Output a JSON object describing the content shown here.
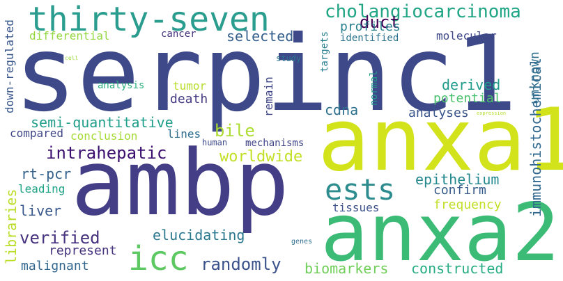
{
  "words": [
    {
      "id": "serpinc1",
      "text": "serpinc1",
      "color": "#3e4989"
    },
    {
      "id": "anxa1",
      "text": "anxa1",
      "color": "#d2e21b"
    },
    {
      "id": "ambp",
      "text": "ambp",
      "color": "#433e85"
    },
    {
      "id": "anxa2",
      "text": "anxa2",
      "color": "#3bbb75"
    },
    {
      "id": "thirty-seven",
      "text": "thirty-seven",
      "color": "#2a9d8f"
    },
    {
      "id": "ests",
      "text": "ests",
      "color": "#2c8c8e"
    },
    {
      "id": "icc",
      "text": "icc",
      "color": "#5ec962"
    },
    {
      "id": "cholangiocarcinoma",
      "text": "cholangiocarcinoma",
      "color": "#21a685"
    },
    {
      "id": "immunohistochemical",
      "text": "immunohistochemical",
      "color": "#31688e"
    },
    {
      "id": "intrahepatic",
      "text": "intrahepatic",
      "color": "#3b0f70"
    },
    {
      "id": "semi-quantitative",
      "text": "semi-quantitative",
      "color": "#1f9e89"
    },
    {
      "id": "worldwide",
      "text": "worldwide",
      "color": "#c2df23"
    },
    {
      "id": "elucidating",
      "text": "elucidating",
      "color": "#2a788e"
    },
    {
      "id": "verified",
      "text": "verified",
      "color": "#46327e"
    },
    {
      "id": "randomly",
      "text": "randomly",
      "color": "#3b528b"
    },
    {
      "id": "biomarkers",
      "text": "biomarkers",
      "color": "#6ece58"
    },
    {
      "id": "constructed",
      "text": "constructed",
      "color": "#25ac82"
    },
    {
      "id": "selected",
      "text": "selected",
      "color": "#355f8d"
    },
    {
      "id": "duct",
      "text": "duct",
      "color": "#440154"
    },
    {
      "id": "profiles",
      "text": "profiles",
      "color": "#277f8e"
    },
    {
      "id": "derived",
      "text": "derived",
      "color": "#1e9b8a"
    },
    {
      "id": "potential",
      "text": "potential",
      "color": "#4ac16d"
    },
    {
      "id": "death",
      "text": "death",
      "color": "#443a83"
    },
    {
      "id": "bile",
      "text": "bile",
      "color": "#addc30"
    },
    {
      "id": "cdna",
      "text": "cdna",
      "color": "#2d718e"
    },
    {
      "id": "analyses",
      "text": "analyses",
      "color": "#3a548c"
    },
    {
      "id": "confirm",
      "text": "confirm",
      "color": "#365c8d"
    },
    {
      "id": "epithelium",
      "text": "epithelium",
      "color": "#23888e"
    },
    {
      "id": "frequency",
      "text": "frequency",
      "color": "#c0df25"
    },
    {
      "id": "unknown",
      "text": "unknown",
      "color": "#2e6e8e"
    },
    {
      "id": "libraries",
      "text": "libraries",
      "color": "#bade28"
    },
    {
      "id": "rt-pcr",
      "text": "rt-pcr",
      "color": "#33638d"
    },
    {
      "id": "leading",
      "text": "leading",
      "color": "#20a386"
    },
    {
      "id": "liver",
      "text": "liver",
      "color": "#38588c"
    },
    {
      "id": "represent",
      "text": "represent",
      "color": "#46337e"
    },
    {
      "id": "malignant",
      "text": "malignant",
      "color": "#31668e"
    },
    {
      "id": "differential",
      "text": "differential",
      "color": "#95d840"
    },
    {
      "id": "down-regulated",
      "text": "down-regulated",
      "color": "#39568c"
    },
    {
      "id": "compared",
      "text": "compared",
      "color": "#404688"
    },
    {
      "id": "conclusion",
      "text": "conclusion",
      "color": "#a5db36"
    },
    {
      "id": "lines",
      "text": "lines",
      "color": "#2e6d8e"
    },
    {
      "id": "tumor",
      "text": "tumor",
      "color": "#b8de29"
    },
    {
      "id": "analysis",
      "text": "analysis",
      "color": "#2ab07f"
    },
    {
      "id": "cancer",
      "text": "cancer",
      "color": "#46337e"
    },
    {
      "id": "human",
      "text": "human",
      "color": "#3e4a89"
    },
    {
      "id": "mechanisms",
      "text": "mechanisms",
      "color": "#404588"
    },
    {
      "id": "remain",
      "text": "remain",
      "color": "#3f4788"
    },
    {
      "id": "normal",
      "text": "normal",
      "color": "#1f9a8a"
    },
    {
      "id": "targets",
      "text": "targets",
      "color": "#277e8e"
    },
    {
      "id": "identified",
      "text": "identified",
      "color": "#2c738e"
    },
    {
      "id": "molecular",
      "text": "molecular",
      "color": "#3f4889"
    },
    {
      "id": "study",
      "text": "study",
      "color": "#2a768e"
    },
    {
      "id": "cell",
      "text": "cell",
      "color": "#9bd93c"
    },
    {
      "id": "tissues",
      "text": "tissues",
      "color": "#3b528b"
    },
    {
      "id": "genes",
      "text": "genes",
      "color": "#2e6d8e"
    },
    {
      "id": "expression",
      "text": "expression",
      "color": "#b5de2b"
    }
  ]
}
